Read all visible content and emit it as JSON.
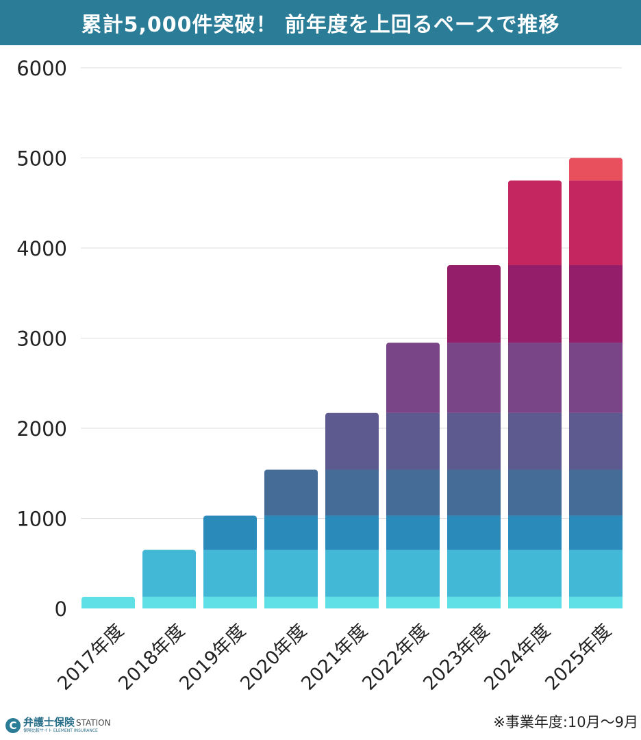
{
  "header": {
    "title": "累計5,000件突破！ 前年度を上回るペースで推移"
  },
  "footer": {
    "note": "※事業年度:10月～9月",
    "logo_main": "弁護士保険",
    "logo_station": "STATION",
    "logo_sub": "保険比較サイト  ELEMENT INSURANCE",
    "logo_mark": "C"
  },
  "colors": {
    "header_bg": "#2a7c97",
    "gridline": "#dddddd",
    "segments": [
      "#5fe0e6",
      "#42b7d6",
      "#2a8ab9",
      "#456b97",
      "#5d5a8f",
      "#7a4586",
      "#951e6b",
      "#c4275f",
      "#e9505d"
    ]
  },
  "chart_data": {
    "type": "bar",
    "stacked": true,
    "title": "累計5,000件突破！ 前年度を上回るペースで推移",
    "xlabel": "",
    "ylabel": "",
    "ylim": [
      0,
      6000
    ],
    "yticks": [
      "0",
      "1000",
      "2000",
      "3000",
      "4000",
      "5000",
      "6000"
    ],
    "categories": [
      "2017年度",
      "2018年度",
      "2019年度",
      "2020年度",
      "2021年度",
      "2022年度",
      "2023年度",
      "2024年度",
      "2025年度"
    ],
    "totals": [
      130,
      650,
      1030,
      1540,
      2170,
      2950,
      3810,
      4750,
      5000
    ],
    "segment_boundaries": [
      0,
      130,
      650,
      1030,
      1540,
      2170,
      2950,
      3810,
      4750,
      5000
    ],
    "grid": true
  }
}
